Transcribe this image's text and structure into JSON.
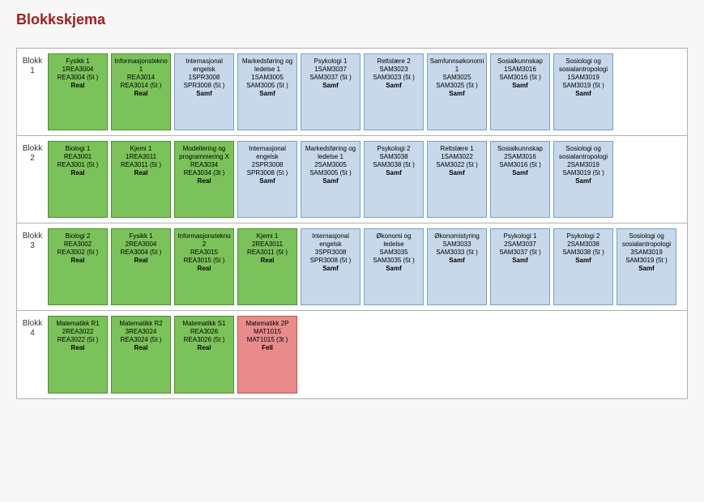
{
  "title": "Blokkskjema",
  "colors": {
    "Real": "#7bc25a",
    "Samf": "#c7d8ea",
    "Fell": "#e98b8b"
  },
  "borderColors": {
    "Real": "#4a8f2a",
    "Samf": "#7aa0c8",
    "Fell": "#c55050"
  },
  "blocks": [
    {
      "label": "Blokk",
      "num": "1",
      "courses": [
        {
          "name": "Fysikk 1",
          "code": "1REA3004",
          "detail": "REA3004 (5t )",
          "cat": "Real"
        },
        {
          "name": "Informasjonstekno 1",
          "code": "REA3014",
          "detail": "REA3014 (5t )",
          "cat": "Real"
        },
        {
          "name": "Internasjonal engelsk",
          "code": "1SPR3008",
          "detail": "SPR3008 (5t )",
          "cat": "Samf"
        },
        {
          "name": "Markedsføring og ledelse 1",
          "code": "1SAM3005",
          "detail": "SAM3005 (5t )",
          "cat": "Samf"
        },
        {
          "name": "Psykologi 1",
          "code": "1SAM3037",
          "detail": "SAM3037 (5t )",
          "cat": "Samf"
        },
        {
          "name": "Rettslære 2",
          "code": "SAM3023",
          "detail": "SAM3023 (5t )",
          "cat": "Samf"
        },
        {
          "name": "Samfunnsøkonomi 1",
          "code": "SAM3025",
          "detail": "SAM3025 (5t )",
          "cat": "Samf"
        },
        {
          "name": "Sosialkunnskap",
          "code": "1SAM3016",
          "detail": "SAM3016 (5t )",
          "cat": "Samf"
        },
        {
          "name": "Sosiologi og sosialantropologi",
          "code": "1SAM3019",
          "detail": "SAM3019 (5t )",
          "cat": "Samf"
        }
      ]
    },
    {
      "label": "Blokk",
      "num": "2",
      "courses": [
        {
          "name": "Biologi 1",
          "code": "REA3001",
          "detail": "REA3001 (5t )",
          "cat": "Real"
        },
        {
          "name": "Kjemi 1",
          "code": "1REA3011",
          "detail": "REA3011 (5t )",
          "cat": "Real"
        },
        {
          "name": "Modellering og programmering X",
          "code": "REA3034",
          "detail": "REA3034 (3t )",
          "cat": "Real"
        },
        {
          "name": "Internasjonal engelsk",
          "code": "2SPR3008",
          "detail": "SPR3008 (5t )",
          "cat": "Samf"
        },
        {
          "name": "Markedsføring og ledelse 1",
          "code": "2SAM3005",
          "detail": "SAM3005 (5t )",
          "cat": "Samf"
        },
        {
          "name": "Psykologi 2",
          "code": "SAM3038",
          "detail": "SAM3038 (5t )",
          "cat": "Samf"
        },
        {
          "name": "Rettslære 1",
          "code": "1SAM3022",
          "detail": "SAM3022 (5t )",
          "cat": "Samf"
        },
        {
          "name": "Sosialkunnskap",
          "code": "2SAM3016",
          "detail": "SAM3016 (5t )",
          "cat": "Samf"
        },
        {
          "name": "Sosiologi og sosialantropologi",
          "code": "2SAM3019",
          "detail": "SAM3019 (5t )",
          "cat": "Samf"
        }
      ]
    },
    {
      "label": "Blokk",
      "num": "3",
      "courses": [
        {
          "name": "Biologi 2",
          "code": "REA3002",
          "detail": "REA3002 (5t )",
          "cat": "Real"
        },
        {
          "name": "Fysikk 1",
          "code": "2REA3004",
          "detail": "REA3004 (5t )",
          "cat": "Real"
        },
        {
          "name": "Informasjonstekno 2",
          "code": "REA3015",
          "detail": "REA3015 (5t )",
          "cat": "Real"
        },
        {
          "name": "Kjemi 1",
          "code": "2REA3011",
          "detail": "REA3011 (5t )",
          "cat": "Real"
        },
        {
          "name": "Internasjonal engelsk",
          "code": "3SPR3008",
          "detail": "SPR3008 (5t )",
          "cat": "Samf"
        },
        {
          "name": "Økonomi og ledelse",
          "code": "SAM3035",
          "detail": "SAM3035 (5t )",
          "cat": "Samf"
        },
        {
          "name": "Økonomistyring",
          "code": "SAM3033",
          "detail": "SAM3033 (5t )",
          "cat": "Samf"
        },
        {
          "name": "Psykologi 1",
          "code": "2SAM3037",
          "detail": "SAM3037 (5t )",
          "cat": "Samf"
        },
        {
          "name": "Psykologi 2",
          "code": "2SAM3038",
          "detail": "SAM3038 (5t )",
          "cat": "Samf"
        },
        {
          "name": "Sosiologi og sosialantropologi",
          "code": "3SAM3019",
          "detail": "SAM3019 (5t )",
          "cat": "Samf"
        }
      ]
    },
    {
      "label": "Blokk",
      "num": "4",
      "courses": [
        {
          "name": "Matematikk R1",
          "code": "2REA3022",
          "detail": "REA3022 (5t )",
          "cat": "Real"
        },
        {
          "name": "Matematikk R2",
          "code": "3REA3024",
          "detail": "REA3024 (5t )",
          "cat": "Real"
        },
        {
          "name": "Matematikk S1",
          "code": "REA3026",
          "detail": "REA3026 (5t )",
          "cat": "Real"
        },
        {
          "name": "Matematikk 2P",
          "code": "MAT1015",
          "detail": "MAT1015 (3t )",
          "cat": "Fell"
        }
      ]
    }
  ]
}
